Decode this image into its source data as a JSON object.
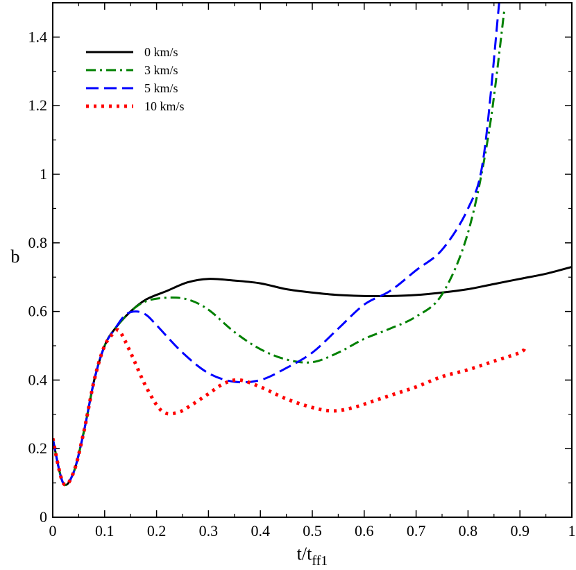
{
  "chart_data": {
    "type": "line",
    "title": "",
    "xlabel": "t/t",
    "xlabel_subscript": "ff1",
    "ylabel": "b",
    "xlim": [
      0,
      1
    ],
    "ylim": [
      0,
      1.5
    ],
    "xticks": [
      0,
      0.1,
      0.2,
      0.3,
      0.4,
      0.5,
      0.6,
      0.7,
      0.8,
      0.9,
      1
    ],
    "xtick_labels": [
      "0",
      "0.1",
      "0.2",
      "0.3",
      "0.4",
      "0.5",
      "0.6",
      "0.7",
      "0.8",
      "0.9",
      "1"
    ],
    "yticks": [
      0,
      0.2,
      0.4,
      0.6,
      0.8,
      1.0,
      1.2,
      1.4
    ],
    "ytick_labels": [
      "0",
      "0.2",
      "0.4",
      "0.6",
      "0.8",
      "1",
      "1.2",
      "1.4"
    ],
    "legend_position": "top-left",
    "series": [
      {
        "name": "0 km/s",
        "color": "#000000",
        "dash": "solid",
        "x": [
          0,
          0.02,
          0.04,
          0.06,
          0.08,
          0.1,
          0.12,
          0.15,
          0.18,
          0.22,
          0.26,
          0.3,
          0.35,
          0.4,
          0.45,
          0.5,
          0.55,
          0.6,
          0.65,
          0.7,
          0.75,
          0.8,
          0.85,
          0.9,
          0.95,
          1.0
        ],
        "y": [
          0.23,
          0.1,
          0.13,
          0.25,
          0.4,
          0.5,
          0.55,
          0.6,
          0.635,
          0.66,
          0.685,
          0.695,
          0.69,
          0.682,
          0.665,
          0.655,
          0.648,
          0.645,
          0.645,
          0.648,
          0.655,
          0.665,
          0.68,
          0.695,
          0.71,
          0.73
        ]
      },
      {
        "name": "3 km/s",
        "color": "#008000",
        "dash": "dashdot",
        "x": [
          0,
          0.02,
          0.04,
          0.06,
          0.08,
          0.1,
          0.12,
          0.15,
          0.18,
          0.22,
          0.26,
          0.3,
          0.35,
          0.4,
          0.45,
          0.5,
          0.55,
          0.6,
          0.65,
          0.7,
          0.75,
          0.8,
          0.84,
          0.87
        ],
        "y": [
          0.23,
          0.1,
          0.13,
          0.25,
          0.4,
          0.5,
          0.55,
          0.6,
          0.63,
          0.64,
          0.635,
          0.605,
          0.54,
          0.49,
          0.46,
          0.452,
          0.48,
          0.52,
          0.55,
          0.585,
          0.65,
          0.83,
          1.12,
          1.48
        ]
      },
      {
        "name": "5 km/s",
        "color": "#0000ff",
        "dash": "dashed",
        "x": [
          0,
          0.02,
          0.04,
          0.06,
          0.08,
          0.1,
          0.12,
          0.14,
          0.16,
          0.18,
          0.2,
          0.25,
          0.3,
          0.35,
          0.4,
          0.45,
          0.5,
          0.55,
          0.6,
          0.65,
          0.7,
          0.75,
          0.8,
          0.83,
          0.86
        ],
        "y": [
          0.23,
          0.1,
          0.13,
          0.25,
          0.4,
          0.5,
          0.55,
          0.59,
          0.6,
          0.59,
          0.56,
          0.48,
          0.42,
          0.395,
          0.4,
          0.435,
          0.48,
          0.55,
          0.62,
          0.66,
          0.72,
          0.78,
          0.9,
          1.05,
          1.5
        ]
      },
      {
        "name": "10 km/s",
        "color": "#ff0000",
        "dash": "dotted",
        "x": [
          0,
          0.02,
          0.04,
          0.06,
          0.08,
          0.1,
          0.12,
          0.13,
          0.15,
          0.18,
          0.21,
          0.24,
          0.27,
          0.3,
          0.33,
          0.36,
          0.4,
          0.45,
          0.5,
          0.54,
          0.58,
          0.62,
          0.66,
          0.7,
          0.75,
          0.8,
          0.85,
          0.9,
          0.91
        ],
        "y": [
          0.23,
          0.1,
          0.13,
          0.25,
          0.4,
          0.5,
          0.54,
          0.54,
          0.48,
          0.38,
          0.31,
          0.305,
          0.33,
          0.36,
          0.39,
          0.4,
          0.38,
          0.345,
          0.32,
          0.31,
          0.32,
          0.34,
          0.36,
          0.38,
          0.41,
          0.43,
          0.455,
          0.48,
          0.495
        ]
      }
    ]
  }
}
